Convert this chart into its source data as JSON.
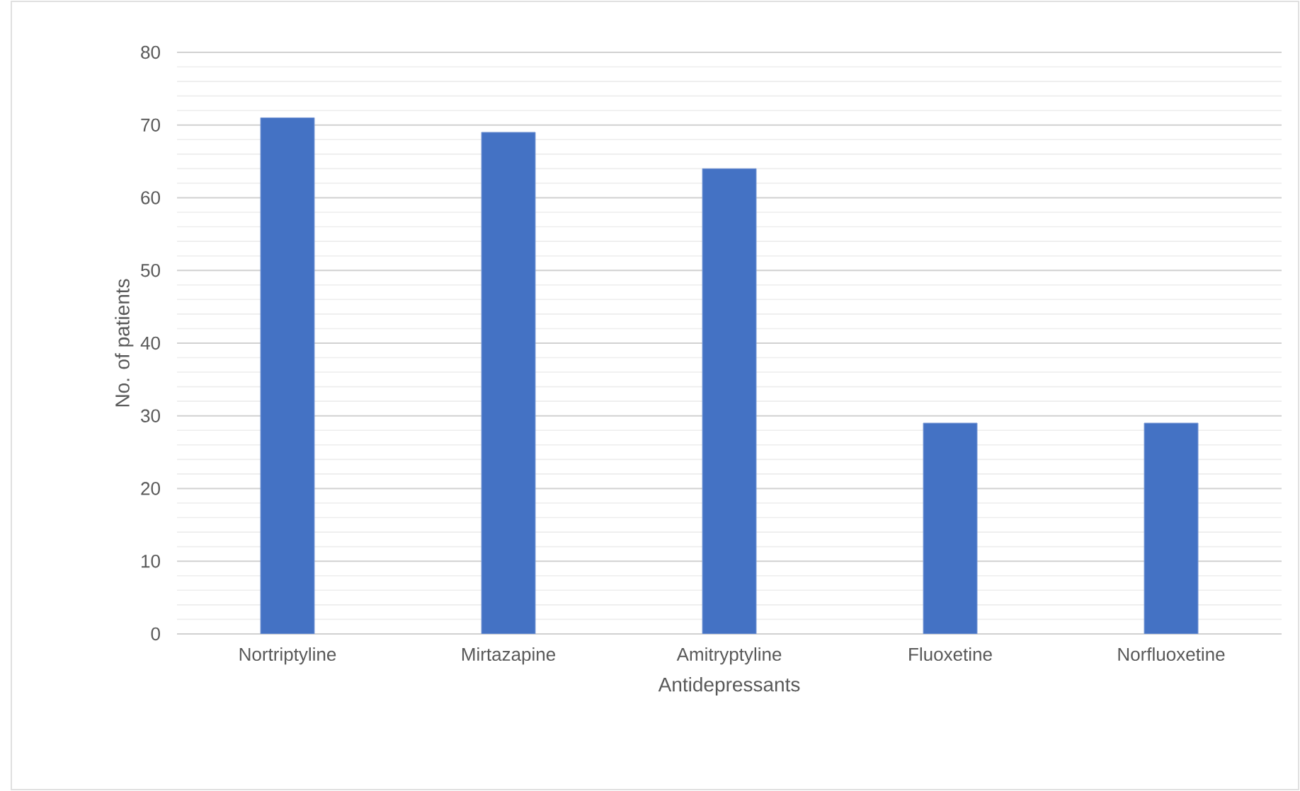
{
  "chart_data": {
    "type": "bar",
    "xlabel": "Antidepressants",
    "ylabel": "No. of patients",
    "categories": [
      "Nortriptyline",
      "Mirtazapine",
      "Amitryptyline",
      "Fluoxetine",
      "Norfluoxetine"
    ],
    "values": [
      71,
      69,
      64,
      29,
      29
    ],
    "color": "#4472c4",
    "ylim": [
      0,
      80
    ],
    "yticks": [
      0,
      10,
      20,
      30,
      40,
      50,
      60,
      70,
      80
    ],
    "grid": "y"
  }
}
